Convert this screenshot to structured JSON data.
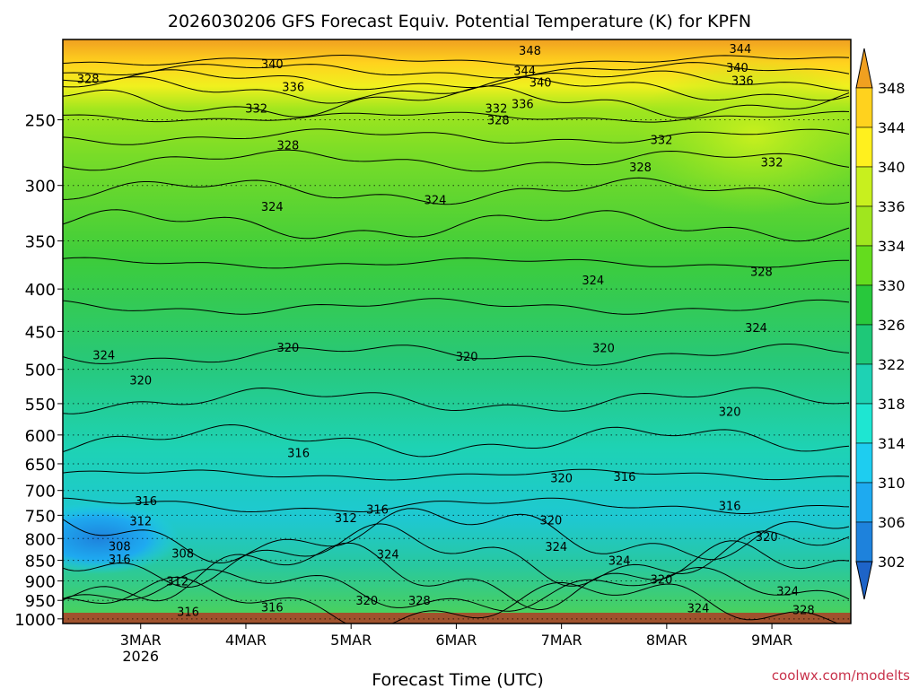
{
  "chart_data": {
    "type": "heatmap",
    "title": "2026030206 GFS Forecast Equiv. Potential Temperature (K) for KPFN",
    "xlabel": "Forecast Time (UTC)",
    "ylabel": "",
    "credit": "coolwx.com/modelts",
    "x_ticks": [
      {
        "label": "3MAR",
        "sub": "2026",
        "day": 3
      },
      {
        "label": "4MAR",
        "sub": "",
        "day": 4
      },
      {
        "label": "5MAR",
        "sub": "",
        "day": 5
      },
      {
        "label": "6MAR",
        "sub": "",
        "day": 6
      },
      {
        "label": "7MAR",
        "sub": "",
        "day": 7
      },
      {
        "label": "8MAR",
        "sub": "",
        "day": 8
      },
      {
        "label": "9MAR",
        "sub": "",
        "day": 9
      }
    ],
    "x_range_days": [
      2.26,
      9.75
    ],
    "y_ticks": [
      250,
      300,
      350,
      400,
      450,
      500,
      550,
      600,
      650,
      700,
      750,
      800,
      850,
      900,
      950,
      1000
    ],
    "y_range_hPa": [
      200,
      1013
    ],
    "y_scale": "log",
    "colorbar": {
      "labels": [
        348,
        344,
        340,
        336,
        334,
        330,
        326,
        322,
        318,
        314,
        310,
        306,
        302
      ],
      "colors": [
        "#f0a020",
        "#ffd21e",
        "#fff01e",
        "#c8f01e",
        "#a0e61e",
        "#64dc1e",
        "#28c83c",
        "#1ec878",
        "#1ed2b4",
        "#1ee6d2",
        "#1ecdf0",
        "#1eaaf0",
        "#1e82dc",
        "#1e64c8"
      ]
    },
    "contour_labels": [
      {
        "v": "348",
        "d": 6.7,
        "p": 206
      },
      {
        "v": "344",
        "d": 6.65,
        "p": 218
      },
      {
        "v": "340",
        "d": 6.8,
        "p": 225
      },
      {
        "v": "336",
        "d": 6.63,
        "p": 239
      },
      {
        "v": "332",
        "d": 6.38,
        "p": 242
      },
      {
        "v": "328",
        "d": 6.4,
        "p": 250
      },
      {
        "v": "344",
        "d": 8.7,
        "p": 205
      },
      {
        "v": "340",
        "d": 8.67,
        "p": 216
      },
      {
        "v": "336",
        "d": 8.72,
        "p": 224
      },
      {
        "v": "340",
        "d": 4.25,
        "p": 214
      },
      {
        "v": "336",
        "d": 4.45,
        "p": 228
      },
      {
        "v": "328",
        "d": 2.5,
        "p": 223
      },
      {
        "v": "332",
        "d": 4.1,
        "p": 242
      },
      {
        "v": "328",
        "d": 4.4,
        "p": 268
      },
      {
        "v": "332",
        "d": 7.95,
        "p": 264
      },
      {
        "v": "328",
        "d": 7.75,
        "p": 285
      },
      {
        "v": "332",
        "d": 9.0,
        "p": 281
      },
      {
        "v": "324",
        "d": 4.25,
        "p": 318
      },
      {
        "v": "324",
        "d": 5.8,
        "p": 312
      },
      {
        "v": "324",
        "d": 7.3,
        "p": 390
      },
      {
        "v": "328",
        "d": 8.9,
        "p": 381
      },
      {
        "v": "324",
        "d": 8.85,
        "p": 445
      },
      {
        "v": "324",
        "d": 2.65,
        "p": 480
      },
      {
        "v": "320",
        "d": 3.0,
        "p": 515
      },
      {
        "v": "320",
        "d": 4.4,
        "p": 470
      },
      {
        "v": "320",
        "d": 6.1,
        "p": 482
      },
      {
        "v": "320",
        "d": 7.4,
        "p": 471
      },
      {
        "v": "320",
        "d": 8.6,
        "p": 562
      },
      {
        "v": "316",
        "d": 4.5,
        "p": 630
      },
      {
        "v": "316",
        "d": 3.05,
        "p": 720
      },
      {
        "v": "312",
        "d": 3.0,
        "p": 762
      },
      {
        "v": "308",
        "d": 2.8,
        "p": 817
      },
      {
        "v": "316",
        "d": 2.8,
        "p": 847
      },
      {
        "v": "308",
        "d": 3.4,
        "p": 833
      },
      {
        "v": "312",
        "d": 3.35,
        "p": 900
      },
      {
        "v": "316",
        "d": 3.45,
        "p": 980
      },
      {
        "v": "316",
        "d": 4.25,
        "p": 967
      },
      {
        "v": "312",
        "d": 4.95,
        "p": 755
      },
      {
        "v": "316",
        "d": 5.25,
        "p": 737
      },
      {
        "v": "324",
        "d": 5.35,
        "p": 835
      },
      {
        "v": "320",
        "d": 5.15,
        "p": 950
      },
      {
        "v": "328",
        "d": 5.65,
        "p": 950
      },
      {
        "v": "320",
        "d": 7.0,
        "p": 676
      },
      {
        "v": "316",
        "d": 7.6,
        "p": 673
      },
      {
        "v": "320",
        "d": 6.9,
        "p": 760
      },
      {
        "v": "324",
        "d": 6.95,
        "p": 818
      },
      {
        "v": "324",
        "d": 7.55,
        "p": 850
      },
      {
        "v": "320",
        "d": 7.95,
        "p": 895
      },
      {
        "v": "324",
        "d": 8.3,
        "p": 970
      },
      {
        "v": "316",
        "d": 8.6,
        "p": 730
      },
      {
        "v": "320",
        "d": 8.95,
        "p": 795
      },
      {
        "v": "324",
        "d": 9.15,
        "p": 925
      },
      {
        "v": "328",
        "d": 9.3,
        "p": 975
      }
    ]
  }
}
